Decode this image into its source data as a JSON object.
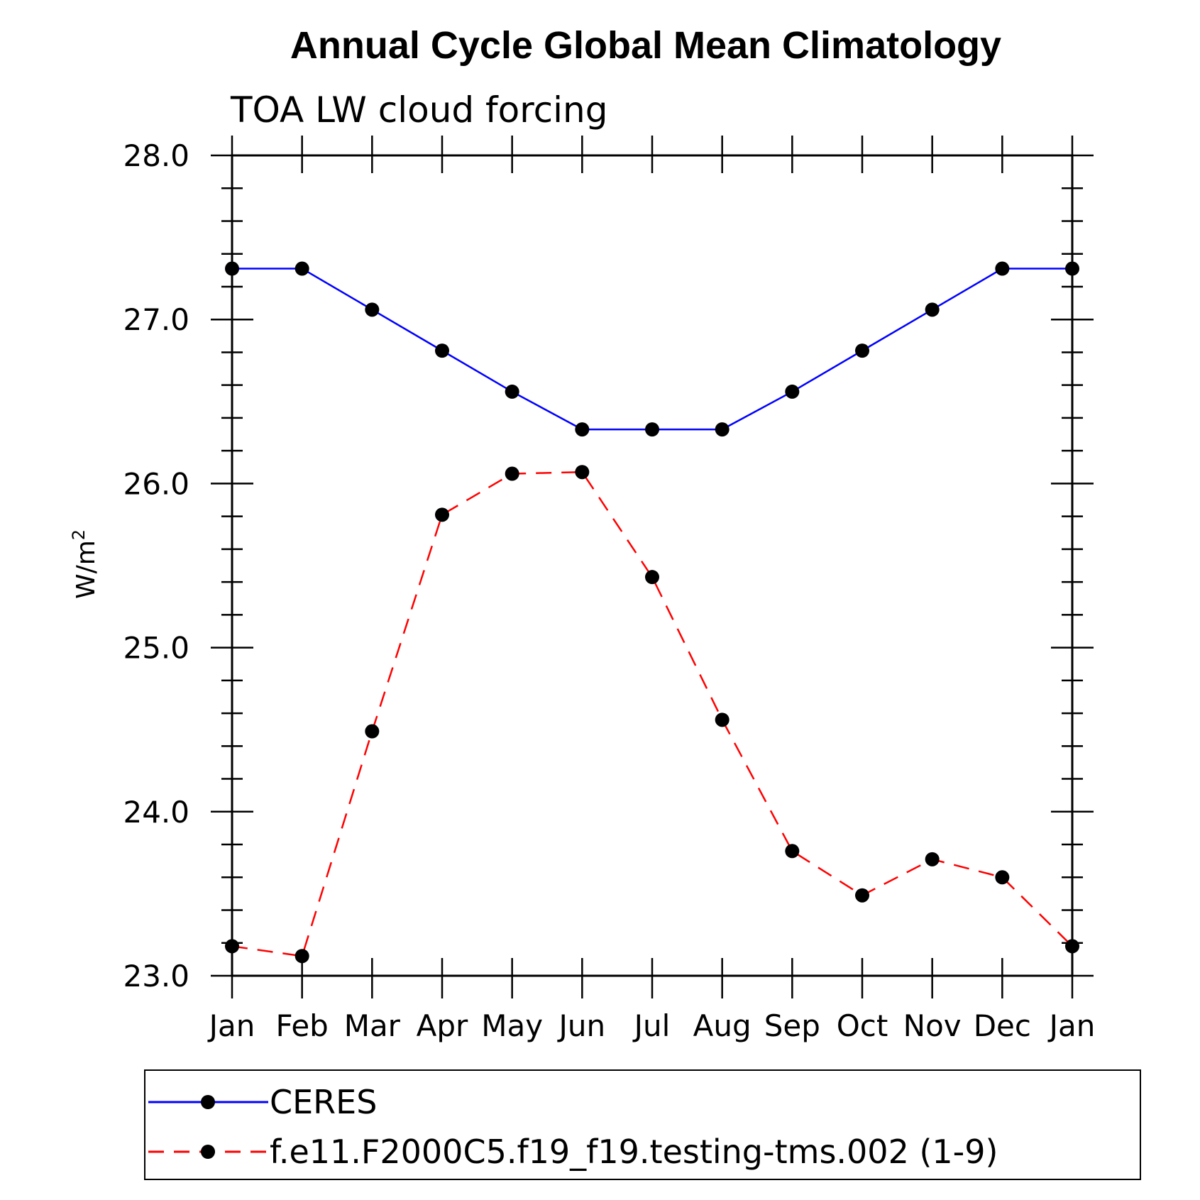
{
  "chart_data": {
    "type": "line",
    "title": "Annual Cycle Global Mean Climatology",
    "subtitle": "TOA LW cloud forcing",
    "ylabel": "W/m",
    "ylabel_superscript": "2",
    "xlabel": "",
    "ylim": [
      23.0,
      28.0
    ],
    "yticks": [
      "23.0",
      "24.0",
      "25.0",
      "26.0",
      "27.0",
      "28.0"
    ],
    "categories": [
      "Jan",
      "Feb",
      "Mar",
      "Apr",
      "May",
      "Jun",
      "Jul",
      "Aug",
      "Sep",
      "Oct",
      "Nov",
      "Dec",
      "Jan"
    ],
    "grid": false,
    "legend_position": "bottom",
    "series": [
      {
        "name": "CERES",
        "color": "#0000ff",
        "line_style": "solid",
        "marker": "circle",
        "values": [
          27.31,
          27.31,
          27.06,
          26.81,
          26.56,
          26.33,
          26.33,
          26.33,
          26.56,
          26.81,
          27.06,
          27.31,
          27.31
        ]
      },
      {
        "name": "f.e11.F2000C5.f19_f19.testing-tms.002 (1-9)",
        "color": "#ff0000",
        "line_style": "dashed",
        "marker": "circle",
        "values": [
          23.18,
          23.12,
          24.49,
          25.81,
          26.06,
          26.07,
          25.43,
          24.56,
          23.76,
          23.49,
          23.71,
          23.6,
          23.18
        ]
      }
    ]
  }
}
